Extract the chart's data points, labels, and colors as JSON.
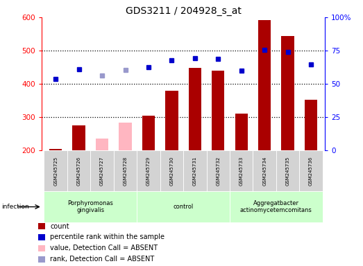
{
  "title": "GDS3211 / 204928_s_at",
  "samples": [
    "GSM245725",
    "GSM245726",
    "GSM245727",
    "GSM245728",
    "GSM245729",
    "GSM245730",
    "GSM245731",
    "GSM245732",
    "GSM245733",
    "GSM245734",
    "GSM245735",
    "GSM245736"
  ],
  "count_present": [
    205,
    275,
    null,
    null,
    305,
    380,
    447,
    440,
    310,
    592,
    543,
    352
  ],
  "count_absent": [
    null,
    null,
    235,
    283,
    null,
    null,
    null,
    null,
    null,
    null,
    null,
    null
  ],
  "rank_present": [
    415,
    443,
    null,
    null,
    449,
    470,
    478,
    474,
    440,
    503,
    495,
    458
  ],
  "rank_absent": [
    null,
    null,
    425,
    441,
    null,
    null,
    null,
    null,
    null,
    null,
    null,
    null
  ],
  "ylim_left": [
    200,
    600
  ],
  "ylim_right": [
    0,
    100
  ],
  "yticks_left": [
    200,
    300,
    400,
    500,
    600
  ],
  "yticks_right": [
    0,
    25,
    50,
    75,
    100
  ],
  "ytick_right_labels": [
    "0",
    "25",
    "50",
    "75",
    "100%"
  ],
  "dotted_lines": [
    300,
    400,
    500
  ],
  "bar_color": "#aa0000",
  "bar_absent_color": "#ffb6c1",
  "dot_color": "#0000cc",
  "dot_absent_color": "#9999cc",
  "sample_bg": "#d3d3d3",
  "group_bg": "#ccffcc",
  "groups": [
    {
      "label": "Porphyromonas\ngingivalis",
      "start": 0,
      "end": 3
    },
    {
      "label": "control",
      "start": 4,
      "end": 7
    },
    {
      "label": "Aggregatbacter\nactinomycetemcomitans",
      "start": 8,
      "end": 11
    }
  ],
  "legend_items": [
    {
      "label": "count",
      "color": "#aa0000"
    },
    {
      "label": "percentile rank within the sample",
      "color": "#0000cc"
    },
    {
      "label": "value, Detection Call = ABSENT",
      "color": "#ffb6c1"
    },
    {
      "label": "rank, Detection Call = ABSENT",
      "color": "#9999cc"
    }
  ]
}
